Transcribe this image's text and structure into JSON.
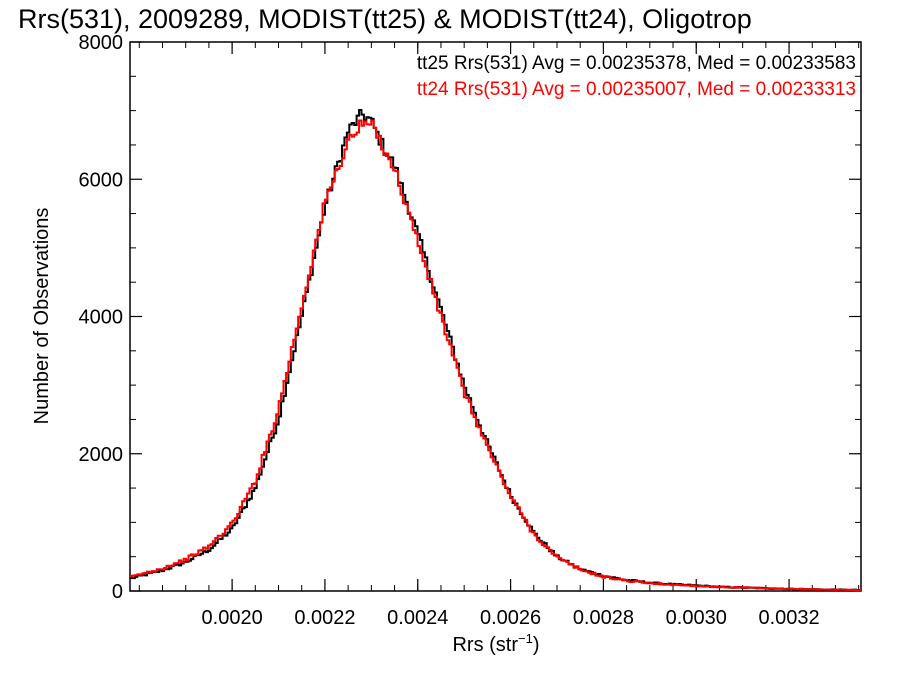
{
  "chart_data": {
    "type": "line",
    "step": true,
    "title": "Rrs(531), 2009289, MODIST(tt25) & MODIST(tt24), Oligotrop",
    "xlabel": "Rrs (str",
    "xlabel_sup": "−1",
    "xlabel_close": ")",
    "ylabel": "Number of Observations",
    "xlim": [
      0.00178,
      0.003355
    ],
    "ylim": [
      0,
      8000
    ],
    "x_ticks": [
      0.002,
      0.0022,
      0.0024,
      0.0026,
      0.0028,
      0.003,
      0.0032
    ],
    "x_tick_labels": [
      "0.0020",
      "0.0022",
      "0.0024",
      "0.0026",
      "0.0028",
      "0.0030",
      "0.0032"
    ],
    "y_ticks": [
      0,
      2000,
      4000,
      6000,
      8000
    ],
    "y_tick_labels": [
      "0",
      "2000",
      "4000",
      "6000",
      "8000"
    ],
    "grid": false,
    "legend_position": "top-right",
    "series": [
      {
        "name": "tt25",
        "color": "#000000",
        "legend": "tt25 Rrs(531) Avg = 0.00235378, Med = 0.00233583",
        "x": [
          0.00178,
          0.00185,
          0.0019,
          0.00195,
          0.002,
          0.00205,
          0.0021,
          0.00215,
          0.0022,
          0.00225,
          0.00228,
          0.0023,
          0.00232,
          0.00235,
          0.0024,
          0.00245,
          0.0025,
          0.00255,
          0.0026,
          0.00265,
          0.0027,
          0.00275,
          0.0028,
          0.00285,
          0.0029,
          0.00295,
          0.003,
          0.00305,
          0.0031,
          0.00315,
          0.0032,
          0.00325,
          0.0033,
          0.003355
        ],
        "y": [
          180,
          300,
          420,
          600,
          900,
          1500,
          2500,
          4000,
          5600,
          6700,
          6950,
          6850,
          6550,
          6200,
          5200,
          4100,
          3000,
          2150,
          1400,
          850,
          500,
          320,
          220,
          160,
          120,
          95,
          80,
          60,
          50,
          40,
          30,
          25,
          20,
          15
        ]
      },
      {
        "name": "tt24",
        "color": "#ff0000",
        "legend": "tt24 Rrs(531) Avg = 0.00235007, Med = 0.00233313",
        "x": [
          0.00178,
          0.00185,
          0.0019,
          0.00195,
          0.002,
          0.00205,
          0.0021,
          0.00215,
          0.0022,
          0.00225,
          0.00228,
          0.0023,
          0.00232,
          0.00235,
          0.0024,
          0.00245,
          0.0025,
          0.00255,
          0.0026,
          0.00265,
          0.0027,
          0.00275,
          0.0028,
          0.00285,
          0.0029,
          0.00295,
          0.003,
          0.00305,
          0.0031,
          0.00315,
          0.0032,
          0.00325,
          0.0033,
          0.003355
        ],
        "y": [
          200,
          330,
          460,
          650,
          980,
          1600,
          2650,
          4150,
          5650,
          6550,
          6800,
          6800,
          6550,
          6150,
          5100,
          4000,
          2900,
          2100,
          1380,
          830,
          490,
          310,
          210,
          150,
          115,
          90,
          75,
          58,
          48,
          38,
          30,
          24,
          19,
          14
        ]
      }
    ]
  }
}
